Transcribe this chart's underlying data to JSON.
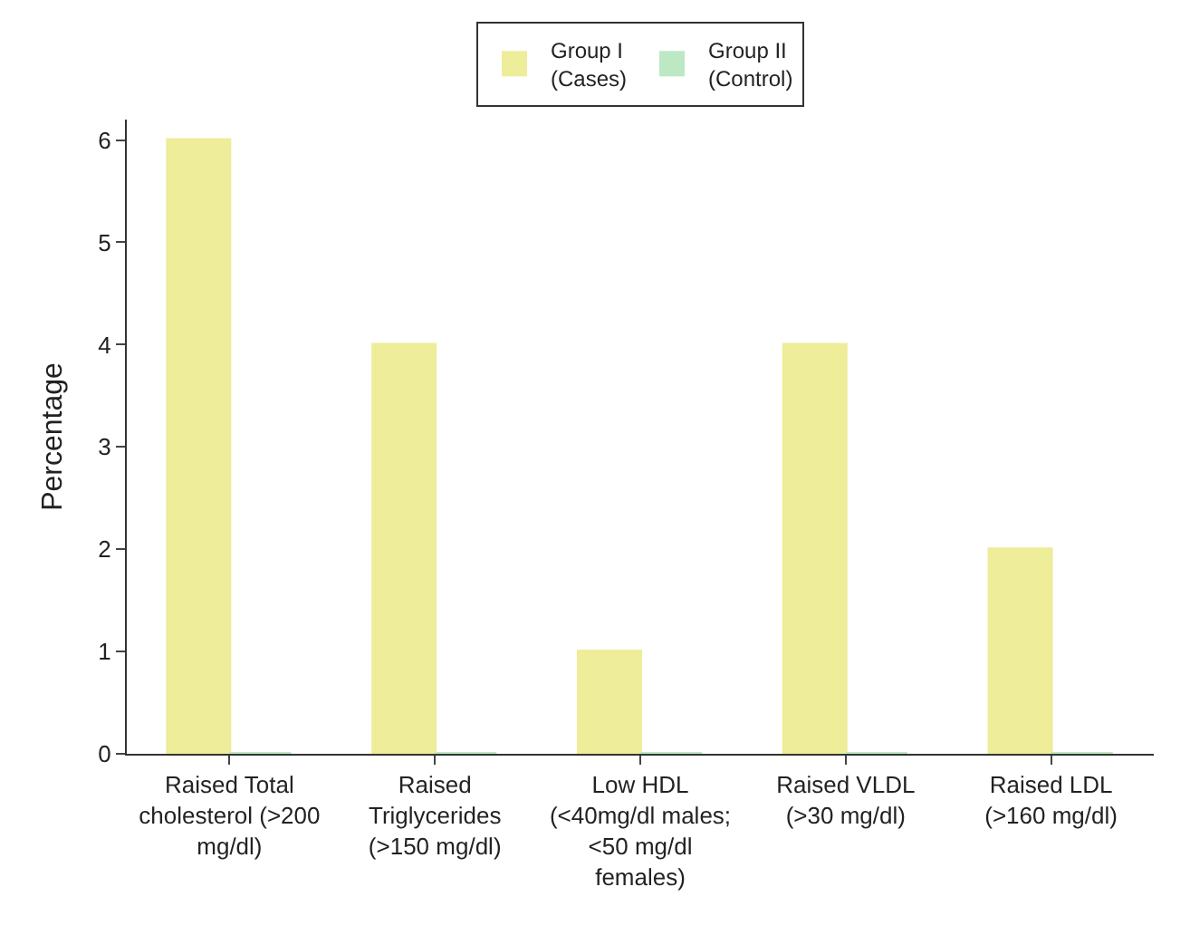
{
  "chart_data": {
    "type": "bar",
    "ylabel": "Percentage",
    "categories": [
      "Raised Total\ncholesterol (>200\nmg/dl)",
      "Raised\nTriglycerides\n(>150 mg/dl)",
      "Low HDL\n(<40mg/dl males;\n<50 mg/dl\nfemales)",
      "Raised VLDL\n(>30 mg/dl)",
      "Raised LDL\n(>160 mg/dl)"
    ],
    "series": [
      {
        "name": "Group I\n(Cases)",
        "color": "#eded9a",
        "values": [
          6,
          4,
          1,
          4,
          2
        ]
      },
      {
        "name": "Group II\n(Control)",
        "color": "#bde8c4",
        "values": [
          0,
          0,
          0,
          0,
          0
        ]
      }
    ],
    "ylim": [
      0,
      6.2
    ],
    "yticks": [
      0,
      1,
      2,
      3,
      4,
      5,
      6
    ],
    "grid": false,
    "legend": "top"
  }
}
